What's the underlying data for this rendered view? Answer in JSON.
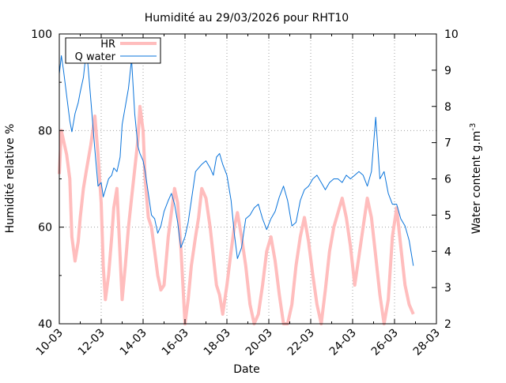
{
  "chart_data": {
    "type": "line",
    "title": "Humidité au 29/03/2026 pour RHT10",
    "xlabel": "Date",
    "ylabel": "Humidité relative %",
    "y2label": "Water content g.m",
    "y2label_superscript": "-3",
    "x_tick_labels": [
      "10-03",
      "12-03",
      "14-03",
      "16-03",
      "18-03",
      "20-03",
      "22-03",
      "24-03",
      "26-03",
      "28-03"
    ],
    "xlim_days": [
      10,
      28
    ],
    "ylim": [
      40,
      100
    ],
    "y_ticks": [
      40,
      60,
      80,
      100
    ],
    "y2lim": [
      2,
      10
    ],
    "y2_ticks": [
      2,
      3,
      4,
      5,
      6,
      7,
      8,
      9,
      10
    ],
    "grid": true,
    "legend_position": "top-left",
    "colors": {
      "HR": "#ffbdbd",
      "Q water": "#0a74db"
    },
    "series": [
      {
        "name": "HR",
        "axis": "left",
        "x": [
          10.0,
          10.1,
          10.2,
          10.35,
          10.5,
          10.6,
          10.75,
          10.9,
          11.0,
          11.15,
          11.3,
          11.5,
          11.7,
          11.85,
          12.0,
          12.1,
          12.2,
          12.35,
          12.5,
          12.6,
          12.75,
          12.9,
          13.0,
          13.15,
          13.3,
          13.45,
          13.6,
          13.75,
          13.85,
          14.0,
          14.1,
          14.25,
          14.4,
          14.55,
          14.7,
          14.85,
          15.0,
          15.2,
          15.35,
          15.5,
          15.65,
          15.8,
          16.0,
          16.15,
          16.3,
          16.5,
          16.65,
          16.8,
          17.0,
          17.2,
          17.35,
          17.5,
          17.65,
          17.8,
          18.0,
          18.2,
          18.35,
          18.5,
          18.7,
          18.9,
          19.1,
          19.3,
          19.5,
          19.7,
          19.9,
          20.1,
          20.3,
          20.5,
          20.7,
          20.9,
          21.1,
          21.3,
          21.5,
          21.7,
          21.9,
          22.1,
          22.3,
          22.5,
          22.7,
          22.9,
          23.1,
          23.3,
          23.5,
          23.7,
          23.9,
          24.1,
          24.3,
          24.5,
          24.7,
          24.9,
          25.1,
          25.3,
          25.5,
          25.7,
          25.9,
          26.1,
          26.3,
          26.5,
          26.7,
          26.9
        ],
        "y": [
          71,
          80,
          78,
          75,
          70,
          58,
          53,
          57,
          62,
          68,
          72,
          77,
          83,
          75,
          65,
          52,
          45,
          50,
          58,
          64,
          68,
          54,
          45,
          52,
          60,
          66,
          72,
          78,
          85,
          80,
          70,
          62,
          60,
          55,
          50,
          47,
          48,
          58,
          63,
          68,
          65,
          56,
          40,
          45,
          52,
          58,
          62,
          68,
          66,
          60,
          54,
          48,
          46,
          42,
          48,
          55,
          60,
          63,
          58,
          52,
          44,
          40,
          42,
          48,
          55,
          58,
          53,
          46,
          40,
          38,
          44,
          52,
          58,
          62,
          57,
          50,
          44,
          40,
          47,
          55,
          60,
          63,
          66,
          62,
          56,
          48,
          54,
          60,
          66,
          62,
          54,
          46,
          40,
          45,
          58,
          64,
          56,
          48,
          44,
          42
        ]
      },
      {
        "name": "Q water",
        "axis": "right",
        "x": [
          10.0,
          10.1,
          10.2,
          10.35,
          10.5,
          10.6,
          10.75,
          10.9,
          11.0,
          11.15,
          11.3,
          11.5,
          11.7,
          11.85,
          12.0,
          12.1,
          12.2,
          12.35,
          12.5,
          12.6,
          12.75,
          12.9,
          13.0,
          13.15,
          13.3,
          13.45,
          13.6,
          13.75,
          13.85,
          14.0,
          14.1,
          14.25,
          14.4,
          14.55,
          14.7,
          14.85,
          15.0,
          15.2,
          15.35,
          15.5,
          15.65,
          15.8,
          16.0,
          16.15,
          16.3,
          16.5,
          16.65,
          16.8,
          17.0,
          17.2,
          17.35,
          17.5,
          17.65,
          17.8,
          18.0,
          18.2,
          18.35,
          18.5,
          18.7,
          18.9,
          19.1,
          19.3,
          19.5,
          19.7,
          19.9,
          20.1,
          20.3,
          20.5,
          20.7,
          20.9,
          21.1,
          21.3,
          21.5,
          21.7,
          21.9,
          22.1,
          22.3,
          22.5,
          22.7,
          22.9,
          23.1,
          23.3,
          23.5,
          23.7,
          23.9,
          24.1,
          24.3,
          24.5,
          24.7,
          24.9,
          25.1,
          25.3,
          25.5,
          25.7,
          25.9,
          26.1,
          26.3,
          26.5,
          26.7,
          26.9
        ],
        "y": [
          8.9,
          9.4,
          9.0,
          8.3,
          7.6,
          7.3,
          7.8,
          8.1,
          8.4,
          8.8,
          9.6,
          8.2,
          6.8,
          5.8,
          5.9,
          5.5,
          5.7,
          6.0,
          6.1,
          6.3,
          6.2,
          6.6,
          7.5,
          8.0,
          8.5,
          9.3,
          7.8,
          6.9,
          6.7,
          6.5,
          6.2,
          5.6,
          5.0,
          4.9,
          4.5,
          4.7,
          5.1,
          5.4,
          5.6,
          5.3,
          4.8,
          4.1,
          4.4,
          4.8,
          5.4,
          6.2,
          6.3,
          6.4,
          6.5,
          6.3,
          6.1,
          6.6,
          6.7,
          6.4,
          6.1,
          5.4,
          4.5,
          3.8,
          4.1,
          4.9,
          5.0,
          5.2,
          5.3,
          4.9,
          4.6,
          4.9,
          5.1,
          5.5,
          5.8,
          5.4,
          4.7,
          4.8,
          5.4,
          5.7,
          5.8,
          6.0,
          6.1,
          5.9,
          5.7,
          5.9,
          6.0,
          6.0,
          5.9,
          6.1,
          6.0,
          6.1,
          6.2,
          6.1,
          5.8,
          6.2,
          7.7,
          6.0,
          6.2,
          5.6,
          5.3,
          5.3,
          4.9,
          4.7,
          4.3,
          3.6
        ]
      }
    ]
  }
}
